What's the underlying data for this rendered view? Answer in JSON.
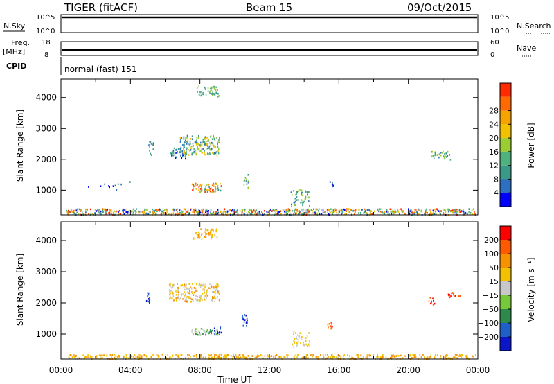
{
  "header": {
    "title": "TIGER (fitACF)",
    "beam": "Beam 15",
    "date": "09/Oct/2015"
  },
  "top_panels": {
    "nsky": {
      "label": "N.Sky",
      "tick_hi": "10^5",
      "tick_lo": "10^0"
    },
    "nsearch": {
      "label": "N.Search",
      "tick_hi": "10^5",
      "tick_lo": "10^0"
    },
    "freq": {
      "label": "Freq.",
      "unit": "[MHz]",
      "tick_hi": "18",
      "tick_lo": "8"
    },
    "nave": {
      "label": "Nave",
      "tick_hi": "60",
      "tick_lo": "0"
    },
    "cpid": {
      "label": "CPID",
      "value": "normal (fast) 151"
    }
  },
  "chart_data": [
    {
      "type": "heatmap",
      "ylabel": "Slant Range [km]",
      "ylim": [
        200,
        4600
      ],
      "y_ticks": [
        1000,
        2000,
        3000,
        4000
      ],
      "xlim": [
        0,
        24
      ],
      "colorbar": {
        "label": "Power [dB]",
        "ticks": [
          "4",
          "8",
          "12",
          "16",
          "20",
          "24",
          "28"
        ],
        "colors": [
          "#0000ff",
          "#2d6fc1",
          "#3a9a88",
          "#4fb27e",
          "#9acd32",
          "#f2c200",
          "#f6a300",
          "#ff6a00",
          "#ff2a00"
        ]
      },
      "regions": [
        {
          "name": "",
          "x": [
            0.3,
            23.9
          ],
          "y": [
            220,
            420
          ],
          "color_range": [
            0,
            8
          ],
          "density": 0.9
        },
        {
          "name": "",
          "x": [
            6.2,
            7.2
          ],
          "y": [
            2050,
            2400
          ],
          "color_range": [
            0,
            3
          ],
          "density": 0.6
        },
        {
          "name": "",
          "x": [
            5.0,
            5.3
          ],
          "y": [
            2150,
            2600
          ],
          "color_range": [
            1,
            4
          ],
          "density": 0.5
        },
        {
          "name": "",
          "x": [
            6.8,
            9.1
          ],
          "y": [
            2150,
            2800
          ],
          "color_range": [
            1,
            5
          ],
          "density": 0.6
        },
        {
          "name": "",
          "x": [
            7.5,
            9.2
          ],
          "y": [
            950,
            1250
          ],
          "color_range": [
            2,
            8
          ],
          "density": 0.8
        },
        {
          "name": "",
          "x": [
            7.8,
            9.1
          ],
          "y": [
            4050,
            4400
          ],
          "color_range": [
            2,
            4
          ],
          "density": 0.5
        },
        {
          "name": "",
          "x": [
            10.5,
            10.8
          ],
          "y": [
            1100,
            1550
          ],
          "color_range": [
            1,
            4
          ],
          "density": 0.6
        },
        {
          "name": "",
          "x": [
            13.2,
            14.3
          ],
          "y": [
            500,
            1050
          ],
          "color_range": [
            1,
            4
          ],
          "density": 0.4
        },
        {
          "name": "",
          "x": [
            15.4,
            15.7
          ],
          "y": [
            1150,
            1350
          ],
          "color_range": [
            0,
            2
          ],
          "density": 0.6
        },
        {
          "name": "",
          "x": [
            21.1,
            22.4
          ],
          "y": [
            2000,
            2300
          ],
          "color_range": [
            1,
            4
          ],
          "density": 0.4
        },
        {
          "name": "",
          "x": [
            1.5,
            4.0
          ],
          "y": [
            1000,
            1300
          ],
          "color_range": [
            0,
            2
          ],
          "density": 0.08
        }
      ]
    },
    {
      "type": "heatmap",
      "ylabel": "Slant Range [km]",
      "ylim": [
        200,
        4600
      ],
      "y_ticks": [
        1000,
        2000,
        3000,
        4000
      ],
      "xlim": [
        0,
        24
      ],
      "x_ticks": [
        "00:00",
        "04:00",
        "08:00",
        "12:00",
        "16:00",
        "20:00",
        "00:00"
      ],
      "xlabel": "Time UT",
      "colorbar": {
        "label": "Velocity [m s⁻¹]",
        "ticks": [
          "200",
          "100",
          "50",
          "15",
          "−15",
          "−50",
          "−100",
          "−200"
        ],
        "colors": [
          "#0a16c8",
          "#1f5fc7",
          "#2e8a4a",
          "#78c83c",
          "#c8c8c8",
          "#f2c200",
          "#f69100",
          "#ff5a00",
          "#ff0000"
        ]
      },
      "regions": [
        {
          "name": "",
          "x": [
            0.3,
            23.9
          ],
          "y": [
            220,
            380
          ],
          "color_range": [
            5,
            6
          ],
          "density": 0.7
        },
        {
          "name": "",
          "x": [
            7.6,
            9.0
          ],
          "y": [
            4050,
            4400
          ],
          "color_range": [
            5,
            6
          ],
          "density": 0.6
        },
        {
          "name": "",
          "x": [
            6.2,
            9.1
          ],
          "y": [
            2050,
            2650
          ],
          "color_range": [
            4,
            6
          ],
          "density": 0.6
        },
        {
          "name": "",
          "x": [
            4.9,
            5.1
          ],
          "y": [
            1950,
            2350
          ],
          "color_range": [
            0,
            1
          ],
          "density": 0.8
        },
        {
          "name": "",
          "x": [
            7.5,
            9.1
          ],
          "y": [
            1000,
            1200
          ],
          "color_range": [
            2,
            4
          ],
          "density": 0.8
        },
        {
          "name": "",
          "x": [
            8.8,
            9.2
          ],
          "y": [
            1000,
            1250
          ],
          "color_range": [
            0,
            1
          ],
          "density": 0.8
        },
        {
          "name": "",
          "x": [
            10.4,
            10.7
          ],
          "y": [
            1250,
            1650
          ],
          "color_range": [
            0,
            1
          ],
          "density": 0.8
        },
        {
          "name": "",
          "x": [
            13.2,
            14.3
          ],
          "y": [
            600,
            1100
          ],
          "color_range": [
            4,
            5
          ],
          "density": 0.4
        },
        {
          "name": "",
          "x": [
            15.3,
            15.6
          ],
          "y": [
            1150,
            1400
          ],
          "color_range": [
            6,
            8
          ],
          "density": 0.8
        },
        {
          "name": "",
          "x": [
            22.2,
            23.0
          ],
          "y": [
            2200,
            2350
          ],
          "color_range": [
            7,
            8
          ],
          "density": 0.7
        },
        {
          "name": "",
          "x": [
            21.1,
            21.5
          ],
          "y": [
            1900,
            2250
          ],
          "color_range": [
            6,
            8
          ],
          "density": 0.4
        }
      ]
    }
  ]
}
